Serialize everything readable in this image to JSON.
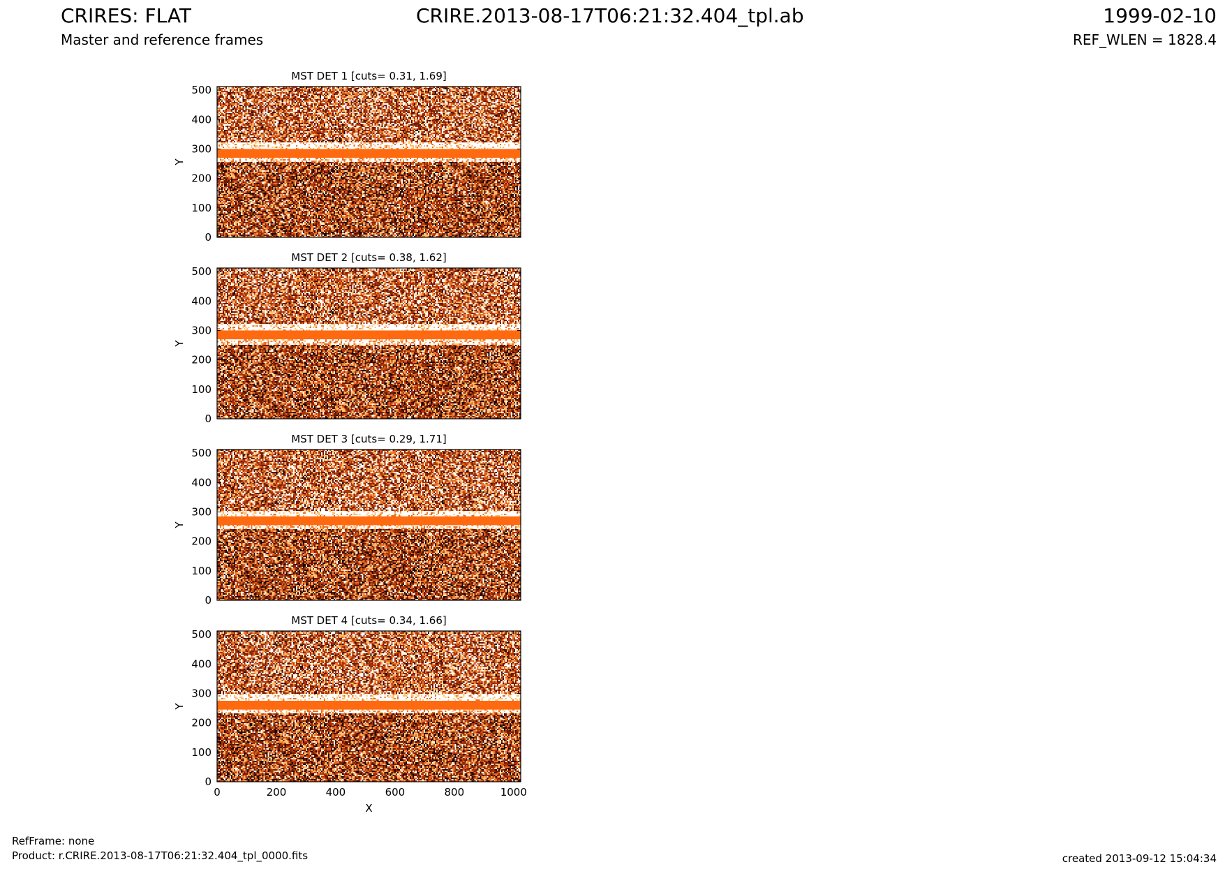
{
  "header": {
    "title_left": "CRIRES: FLAT",
    "subtitle_left": "Master and reference frames",
    "title_center": "CRIRE.2013-08-17T06:21:32.404_tpl.ab",
    "title_right": "1999-02-10",
    "subtitle_right": "REF_WLEN = 1828.4"
  },
  "footer": {
    "refframe": "RefFrame: none",
    "product": "Product: r.CRIRE.2013-08-17T06:21:32.404_tpl_0000.fits",
    "created": "created 2013-09-12 15:04:34"
  },
  "colors": {
    "band": "#ff6a10",
    "dark": "#1a0500",
    "mid": "#b93808",
    "bright": "#ffffff"
  },
  "chart_data": [
    {
      "type": "heatmap",
      "title": "MST DET 1 [cuts= 0.31, 1.69]",
      "xlabel": "",
      "ylabel": "Y",
      "xlim": [
        0,
        1024
      ],
      "ylim": [
        0,
        512
      ],
      "xticks": [],
      "xticklabels": [],
      "yticks": [
        0,
        100,
        200,
        300,
        400,
        500
      ],
      "yticklabels": [
        "0",
        "100",
        "200",
        "300",
        "400",
        "500"
      ],
      "band_y": [
        270,
        300
      ],
      "bright_rows": [
        [
          255,
          270
        ],
        [
          300,
          320
        ]
      ]
    },
    {
      "type": "heatmap",
      "title": "MST DET 2 [cuts= 0.38, 1.62]",
      "xlabel": "",
      "ylabel": "Y",
      "xlim": [
        0,
        1024
      ],
      "ylim": [
        0,
        512
      ],
      "xticks": [],
      "xticklabels": [],
      "yticks": [
        0,
        100,
        200,
        300,
        400,
        500
      ],
      "yticklabels": [
        "0",
        "100",
        "200",
        "300",
        "400",
        "500"
      ],
      "band_y": [
        270,
        300
      ],
      "bright_rows": [
        [
          250,
          270
        ],
        [
          300,
          320
        ]
      ]
    },
    {
      "type": "heatmap",
      "title": "MST DET 3 [cuts= 0.29, 1.71]",
      "xlabel": "",
      "ylabel": "Y",
      "xlim": [
        0,
        1024
      ],
      "ylim": [
        0,
        512
      ],
      "xticks": [],
      "xticklabels": [],
      "yticks": [
        0,
        100,
        200,
        300,
        400,
        500
      ],
      "yticklabels": [
        "0",
        "100",
        "200",
        "300",
        "400",
        "500"
      ],
      "band_y": [
        255,
        285
      ],
      "bright_rows": [
        [
          240,
          255
        ],
        [
          285,
          305
        ]
      ]
    },
    {
      "type": "heatmap",
      "title": "MST DET 4 [cuts= 0.34, 1.66]",
      "xlabel": "X",
      "ylabel": "Y",
      "xlim": [
        0,
        1024
      ],
      "ylim": [
        0,
        512
      ],
      "xticks": [
        0,
        200,
        400,
        600,
        800,
        1000
      ],
      "xticklabels": [
        "0",
        "200",
        "400",
        "600",
        "800",
        "1000"
      ],
      "yticks": [
        0,
        100,
        200,
        300,
        400,
        500
      ],
      "yticklabels": [
        "0",
        "100",
        "200",
        "300",
        "400",
        "500"
      ],
      "band_y": [
        245,
        275
      ],
      "bright_rows": [
        [
          230,
          245
        ],
        [
          275,
          300
        ]
      ]
    }
  ]
}
